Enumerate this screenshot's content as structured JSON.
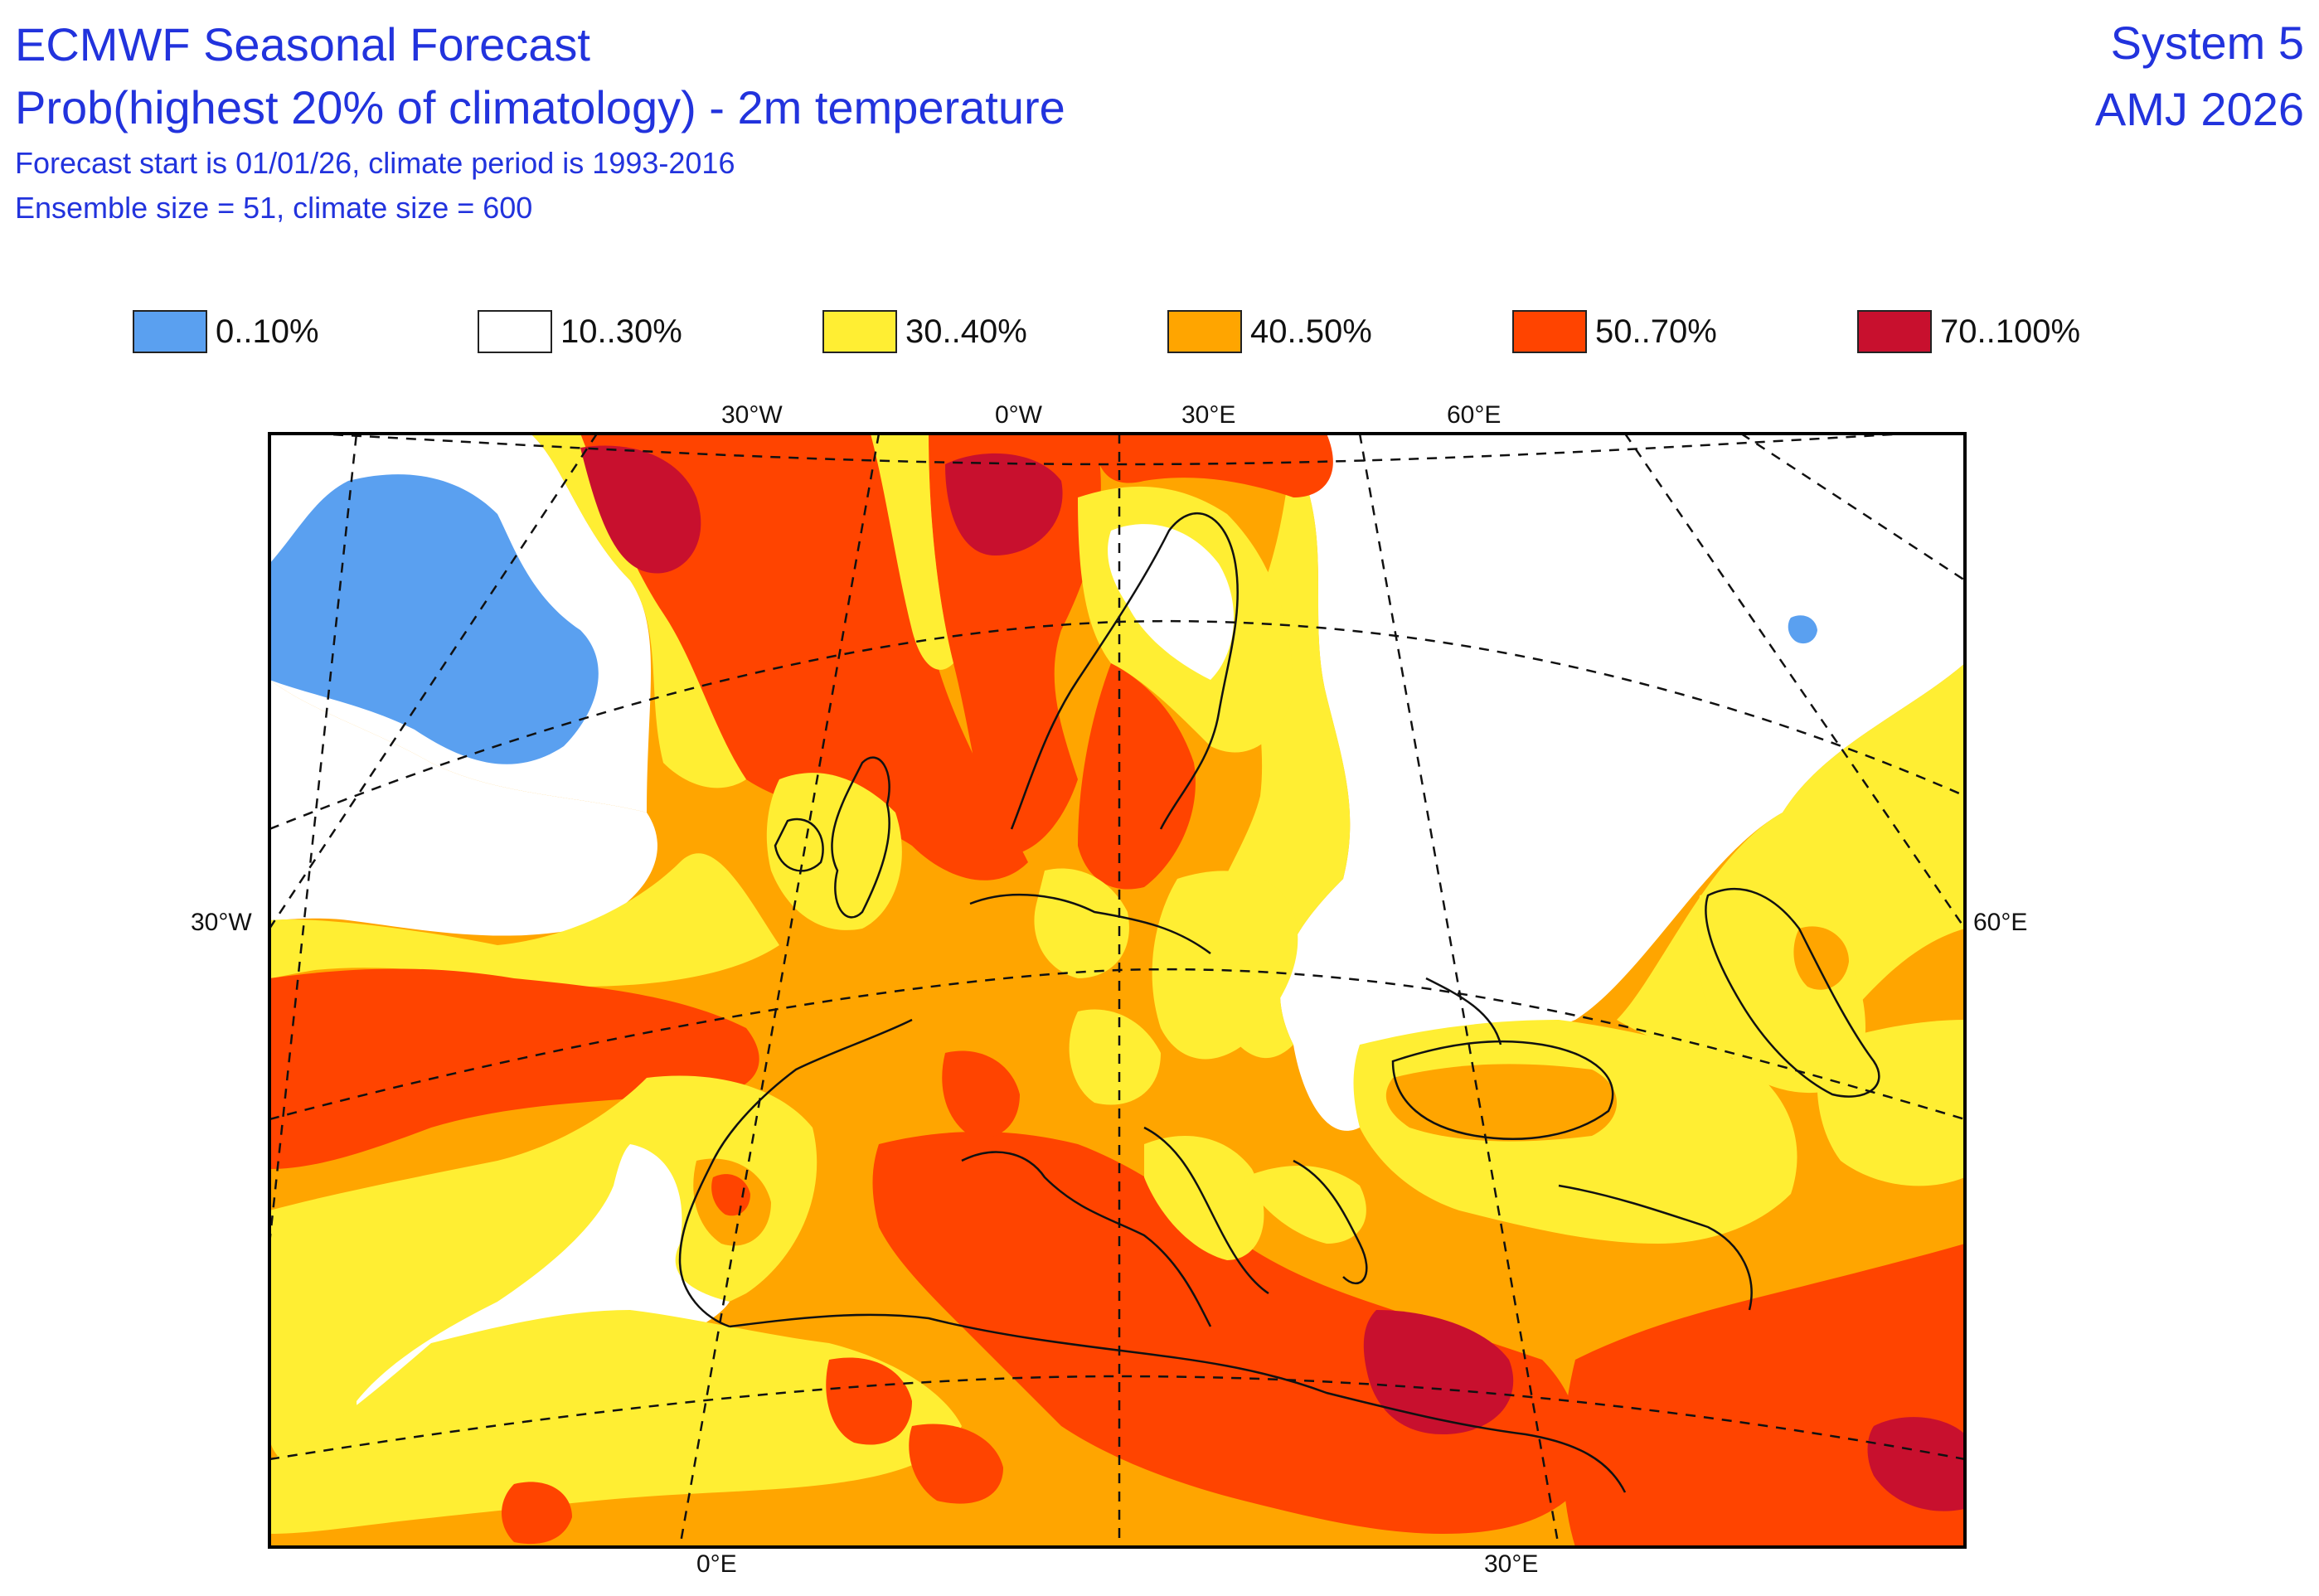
{
  "header": {
    "line1": "ECMWF Seasonal Forecast",
    "line2": "Prob(highest 20% of climatology) - 2m temperature",
    "line3": "Forecast start is 01/01/26, climate period is 1993-2016",
    "line4": "Ensemble size = 51, climate size = 600",
    "system": "System 5",
    "season": "AMJ 2026"
  },
  "legend": {
    "items": [
      {
        "label": "0..10%",
        "color": "#5aa0f0"
      },
      {
        "label": "10..30%",
        "color": "#ffffff"
      },
      {
        "label": "30..40%",
        "color": "#ffee33"
      },
      {
        "label": "40..50%",
        "color": "#ffa500"
      },
      {
        "label": "50..70%",
        "color": "#ff4400"
      },
      {
        "label": "70..100%",
        "color": "#c8102e"
      }
    ]
  },
  "map": {
    "grid_labels": {
      "top": [
        "30°W",
        "0°W",
        "30°E",
        "60°E"
      ],
      "left": "30°W",
      "right": "60°E",
      "bottom": [
        "0°E",
        "30°E"
      ]
    }
  }
}
